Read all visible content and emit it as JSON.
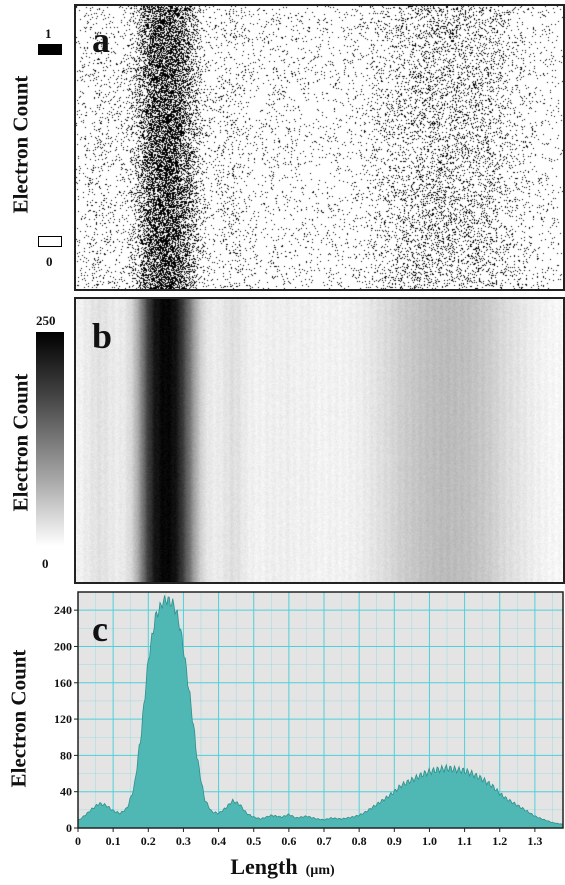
{
  "panels": {
    "a": {
      "letter": "a",
      "ylabel": "Electron Count",
      "scale_max": "1",
      "scale_min": "0"
    },
    "b": {
      "letter": "b",
      "ylabel": "Electron Count",
      "scale_max": "250",
      "scale_min": "0"
    },
    "c": {
      "letter": "c",
      "ylabel": "Electron Count",
      "xlabel": "Length",
      "xunit": "(µm)"
    }
  },
  "colors": {
    "area_fill": "#4fb8b4",
    "area_stroke": "#2f8f8b",
    "grid": "#4fd0d8",
    "plot_bg": "#e4e4e4"
  },
  "chart_data": [
    {
      "type": "heatmap",
      "panel": "a",
      "description_values": "single-electron event map; values 0 or 1",
      "ylabel": "Electron Count",
      "colorscale_range": [
        0,
        1
      ]
    },
    {
      "type": "heatmap",
      "panel": "b",
      "ylabel": "Electron Count",
      "colorscale_range": [
        0,
        250
      ]
    },
    {
      "type": "area",
      "panel": "c",
      "xlabel": "Length (µm)",
      "ylabel": "Electron Count",
      "xlim": [
        0,
        1.38
      ],
      "ylim": [
        0,
        260
      ],
      "grid": true,
      "x_ticks": [
        "0",
        "0.1",
        "0.2",
        "0.3",
        "0.4",
        "0.5",
        "0.6",
        "0.7",
        "0.8",
        "0.9",
        "1.0",
        "1.1",
        "1.2",
        "1.3"
      ],
      "y_ticks": [
        "0",
        "40",
        "80",
        "120",
        "160",
        "200",
        "240"
      ],
      "x": [
        0,
        0.02,
        0.04,
        0.06,
        0.08,
        0.1,
        0.12,
        0.14,
        0.16,
        0.18,
        0.2,
        0.22,
        0.24,
        0.25,
        0.26,
        0.27,
        0.28,
        0.29,
        0.3,
        0.32,
        0.34,
        0.36,
        0.38,
        0.4,
        0.42,
        0.44,
        0.46,
        0.48,
        0.5,
        0.52,
        0.55,
        0.58,
        0.6,
        0.62,
        0.65,
        0.68,
        0.7,
        0.72,
        0.75,
        0.78,
        0.8,
        0.82,
        0.85,
        0.88,
        0.9,
        0.92,
        0.95,
        0.98,
        1.0,
        1.02,
        1.05,
        1.08,
        1.1,
        1.12,
        1.15,
        1.18,
        1.2,
        1.22,
        1.25,
        1.28,
        1.3,
        1.32,
        1.35,
        1.38
      ],
      "values": [
        8,
        14,
        21,
        27,
        25,
        19,
        16,
        22,
        45,
        105,
        185,
        232,
        248,
        252,
        250,
        247,
        238,
        222,
        198,
        140,
        75,
        32,
        18,
        16,
        22,
        30,
        26,
        16,
        12,
        10,
        14,
        12,
        15,
        11,
        13,
        10,
        9,
        11,
        10,
        12,
        14,
        18,
        26,
        34,
        40,
        47,
        53,
        59,
        62,
        64,
        66,
        64,
        63,
        60,
        54,
        46,
        38,
        32,
        25,
        18,
        13,
        10,
        6,
        4
      ]
    }
  ]
}
